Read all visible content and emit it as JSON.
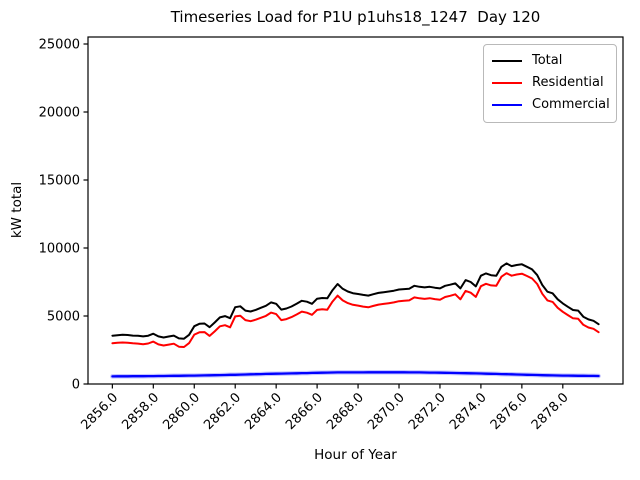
{
  "title": "Timeseries Load for P1U p1uhs18_1247  Day 120",
  "axes": {
    "xlabel": "Hour of Year",
    "ylabel": "kW total"
  },
  "colors": {
    "axis": "#000000",
    "background": "#ffffff",
    "legend_border": "#b9b9b9"
  },
  "chart_data": {
    "type": "line",
    "title": "Timeseries Load for P1U p1uhs18_1247  Day 120",
    "xlabel": "Hour of Year",
    "ylabel": "kW total",
    "xlim": [
      2854.81,
      2880.94
    ],
    "ylim": [
      0,
      25515
    ],
    "grid": false,
    "legend_position": "upper right",
    "axis_color": "#000000",
    "xticks": [
      2856,
      2858,
      2860,
      2862,
      2864,
      2866,
      2868,
      2870,
      2872,
      2874,
      2876,
      2878
    ],
    "xtick_labels": [
      "2856.0",
      "2858.0",
      "2860.0",
      "2862.0",
      "2864.0",
      "2866.0",
      "2868.0",
      "2870.0",
      "2872.0",
      "2874.0",
      "2876.0",
      "2878.0"
    ],
    "yticks": [
      0,
      5000,
      10000,
      15000,
      20000,
      25000
    ],
    "ytick_labels": [
      "0",
      "5000",
      "10000",
      "15000",
      "20000",
      "25000"
    ],
    "x": [
      2856,
      2856.25,
      2856.5,
      2856.75,
      2857,
      2857.25,
      2857.5,
      2857.75,
      2858,
      2858.25,
      2858.5,
      2858.75,
      2859,
      2859.25,
      2859.5,
      2859.75,
      2860,
      2860.25,
      2860.5,
      2860.75,
      2861,
      2861.25,
      2861.5,
      2861.75,
      2862,
      2862.25,
      2862.5,
      2862.75,
      2863,
      2863.25,
      2863.5,
      2863.75,
      2864,
      2864.25,
      2864.5,
      2864.75,
      2865,
      2865.25,
      2865.5,
      2865.75,
      2866,
      2866.25,
      2866.5,
      2866.75,
      2867,
      2867.25,
      2867.5,
      2867.75,
      2868,
      2868.25,
      2868.5,
      2868.75,
      2869,
      2869.25,
      2869.5,
      2869.75,
      2870,
      2870.25,
      2870.5,
      2870.75,
      2871,
      2871.25,
      2871.5,
      2871.75,
      2872,
      2872.25,
      2872.5,
      2872.75,
      2873,
      2873.25,
      2873.5,
      2873.75,
      2874,
      2874.25,
      2874.5,
      2874.75,
      2875,
      2875.25,
      2875.5,
      2875.75,
      2876,
      2876.25,
      2876.5,
      2876.75,
      2877,
      2877.25,
      2877.5,
      2877.75,
      2878,
      2878.25,
      2878.5,
      2878.75,
      2879,
      2879.25,
      2879.5,
      2879.75
    ],
    "series": [
      {
        "name": "Total",
        "color": "#000000",
        "values": [
          3550,
          3590,
          3620,
          3600,
          3560,
          3545,
          3500,
          3555,
          3700,
          3500,
          3420,
          3490,
          3560,
          3350,
          3330,
          3620,
          4250,
          4430,
          4450,
          4180,
          4520,
          4900,
          4990,
          4840,
          5650,
          5710,
          5400,
          5330,
          5450,
          5600,
          5750,
          6000,
          5900,
          5470,
          5550,
          5700,
          5900,
          6120,
          6050,
          5900,
          6270,
          6320,
          6300,
          6900,
          7350,
          7000,
          6800,
          6680,
          6620,
          6550,
          6500,
          6600,
          6700,
          6750,
          6800,
          6860,
          6950,
          6980,
          7000,
          7220,
          7150,
          7100,
          7150,
          7080,
          7030,
          7220,
          7300,
          7400,
          7030,
          7640,
          7500,
          7180,
          7960,
          8130,
          8000,
          7960,
          8620,
          8870,
          8670,
          8750,
          8800,
          8620,
          8430,
          8010,
          7280,
          6790,
          6670,
          6230,
          5930,
          5680,
          5440,
          5400,
          4950,
          4750,
          4650,
          4400
        ]
      },
      {
        "name": "Residential",
        "color": "#ff0000",
        "values": [
          2990,
          3027,
          3055,
          3032,
          2990,
          2972,
          2925,
          2977,
          3120,
          2915,
          2830,
          2895,
          2960,
          2745,
          2720,
          3005,
          3630,
          3802,
          3815,
          3537,
          3870,
          4242,
          4325,
          4167,
          4970,
          5020,
          4700,
          4620,
          4730,
          4870,
          5010,
          5250,
          5140,
          4702,
          4775,
          4917,
          5110,
          5322,
          5245,
          5087,
          5450,
          5492,
          5465,
          6057,
          6500,
          6149,
          5947,
          5826,
          5765,
          5694,
          5642,
          5741,
          5840,
          5890,
          5940,
          6000,
          6090,
          6122,
          6145,
          6367,
          6300,
          6255,
          6310,
          6245,
          6200,
          6397,
          6485,
          6592,
          6230,
          6847,
          6715,
          6402,
          7190,
          7370,
          7250,
          7220,
          7890,
          8150,
          7960,
          8050,
          8110,
          7940,
          7760,
          7350,
          6630,
          6147,
          6035,
          5602,
          5310,
          5065,
          4830,
          4795,
          4350,
          4153,
          4057,
          3810
        ]
      },
      {
        "name": "Commercial",
        "color": "#0000ff",
        "values": [
          560,
          563,
          565,
          568,
          570,
          573,
          575,
          578,
          580,
          585,
          590,
          595,
          600,
          605,
          610,
          615,
          620,
          628,
          635,
          643,
          650,
          658,
          665,
          673,
          680,
          690,
          700,
          710,
          720,
          730,
          740,
          750,
          760,
          768,
          775,
          783,
          790,
          798,
          805,
          813,
          820,
          828,
          835,
          843,
          850,
          851,
          853,
          854,
          855,
          856,
          858,
          859,
          860,
          860,
          860,
          860,
          860,
          858,
          855,
          853,
          850,
          845,
          840,
          835,
          830,
          823,
          815,
          808,
          800,
          793,
          785,
          778,
          770,
          760,
          750,
          740,
          730,
          720,
          710,
          700,
          690,
          680,
          670,
          660,
          650,
          643,
          635,
          628,
          620,
          615,
          610,
          605,
          600,
          597,
          593,
          590
        ]
      }
    ]
  }
}
